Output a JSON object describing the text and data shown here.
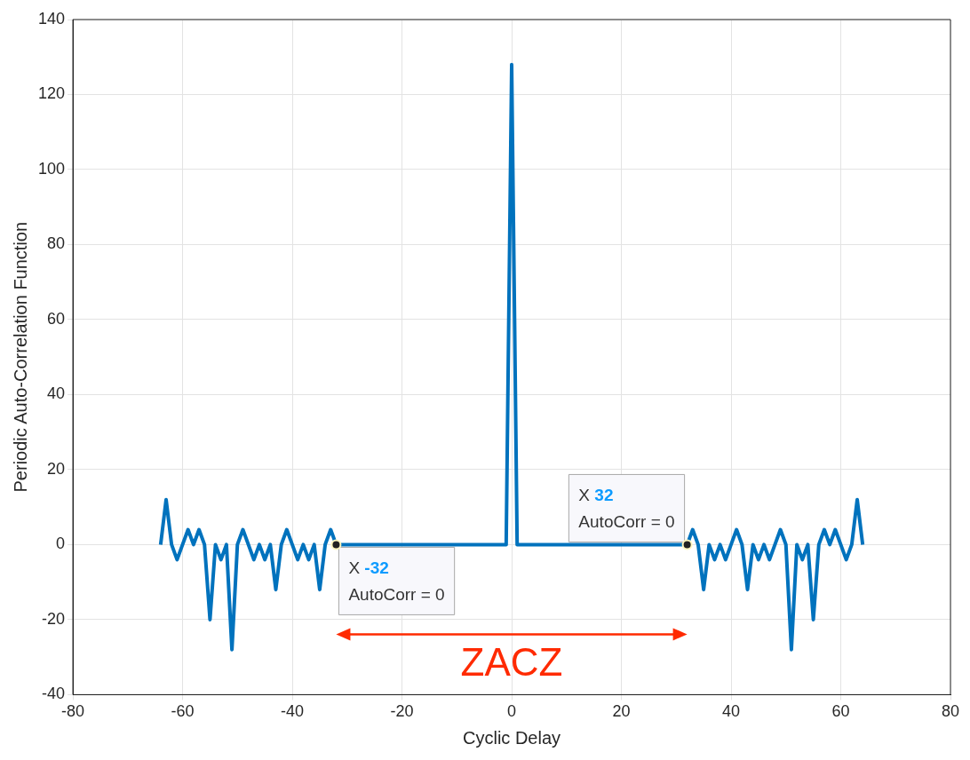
{
  "chart_data": {
    "type": "line",
    "xlabel": "Cyclic Delay",
    "ylabel": "Periodic Auto-Correlation Function",
    "x": [
      -64,
      -63,
      -62,
      -61,
      -60,
      -59,
      -58,
      -57,
      -56,
      -55,
      -54,
      -53,
      -52,
      -51,
      -50,
      -49,
      -48,
      -47,
      -46,
      -45,
      -44,
      -43,
      -42,
      -41,
      -40,
      -39,
      -38,
      -37,
      -36,
      -35,
      -34,
      -33,
      -32,
      -31,
      -30,
      -29,
      -28,
      -27,
      -26,
      -25,
      -24,
      -23,
      -22,
      -21,
      -20,
      -19,
      -18,
      -17,
      -16,
      -15,
      -14,
      -13,
      -12,
      -11,
      -10,
      -9,
      -8,
      -7,
      -6,
      -5,
      -4,
      -3,
      -2,
      -1,
      0,
      1,
      2,
      3,
      4,
      5,
      6,
      7,
      8,
      9,
      10,
      11,
      12,
      13,
      14,
      15,
      16,
      17,
      18,
      19,
      20,
      21,
      22,
      23,
      24,
      25,
      26,
      27,
      28,
      29,
      30,
      31,
      32,
      33,
      34,
      35,
      36,
      37,
      38,
      39,
      40,
      41,
      42,
      43,
      44,
      45,
      46,
      47,
      48,
      49,
      50,
      51,
      52,
      53,
      54,
      55,
      56,
      57,
      58,
      59,
      60,
      61,
      62,
      63,
      64
    ],
    "series": [
      {
        "color": "#0072bd",
        "values": [
          0,
          12,
          0,
          -4,
          0,
          4,
          0,
          4,
          0,
          -20,
          0,
          -4,
          0,
          -28,
          0,
          4,
          0,
          -4,
          0,
          -4,
          0,
          -12,
          0,
          4,
          0,
          -4,
          0,
          -4,
          0,
          -12,
          0,
          4,
          0,
          0,
          0,
          0,
          0,
          0,
          0,
          0,
          0,
          0,
          0,
          0,
          0,
          0,
          0,
          0,
          0,
          0,
          0,
          0,
          0,
          0,
          0,
          0,
          0,
          0,
          0,
          0,
          0,
          0,
          0,
          0,
          128,
          0,
          0,
          0,
          0,
          0,
          0,
          0,
          0,
          0,
          0,
          0,
          0,
          0,
          0,
          0,
          0,
          0,
          0,
          0,
          0,
          0,
          0,
          0,
          0,
          0,
          0,
          0,
          0,
          0,
          0,
          0,
          0,
          4,
          0,
          -12,
          0,
          -4,
          0,
          -4,
          0,
          4,
          0,
          -12,
          0,
          -4,
          0,
          -4,
          0,
          4,
          0,
          -28,
          0,
          -4,
          0,
          -20,
          0,
          4,
          0,
          4,
          0,
          -4,
          0,
          12,
          0
        ]
      }
    ],
    "xlim": [
      -80,
      80
    ],
    "xticks": [
      -80,
      -60,
      -40,
      -20,
      0,
      20,
      40,
      60,
      80
    ],
    "ylim": [
      -40,
      140
    ],
    "yticks": [
      -40,
      -20,
      0,
      20,
      40,
      60,
      80,
      100,
      120,
      140
    ],
    "grid": true,
    "legend": false,
    "marker": "none",
    "line_style": "solid",
    "annotations": [
      {
        "text": "X -32\nAutoCorr = 0",
        "x": -32,
        "y": 0
      },
      {
        "text": "X 32\nAutoCorr = 0",
        "x": 32,
        "y": 0
      },
      "ZACZ"
    ]
  }
}
